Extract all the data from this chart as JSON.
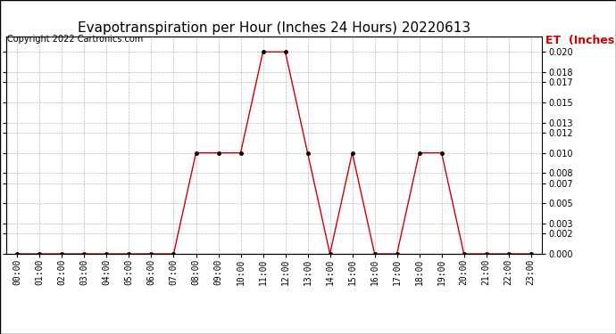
{
  "title": "Evapotranspiration per Hour (Inches 24 Hours) 20220613",
  "copyright_text": "Copyright 2022 Cartronics.com",
  "legend_label": "ET  (Inches)",
  "hours": [
    "00:00",
    "01:00",
    "02:00",
    "03:00",
    "04:00",
    "05:00",
    "06:00",
    "07:00",
    "08:00",
    "09:00",
    "10:00",
    "11:00",
    "12:00",
    "13:00",
    "14:00",
    "15:00",
    "16:00",
    "17:00",
    "18:00",
    "19:00",
    "20:00",
    "21:00",
    "22:00",
    "23:00"
  ],
  "values": [
    0.0,
    0.0,
    0.0,
    0.0,
    0.0,
    0.0,
    0.0,
    0.0,
    0.01,
    0.01,
    0.01,
    0.02,
    0.02,
    0.01,
    0.0,
    0.01,
    0.0,
    0.0,
    0.01,
    0.01,
    0.0,
    0.0,
    0.0,
    0.0
  ],
  "ylim": [
    0.0,
    0.0215
  ],
  "yticks": [
    0.0,
    0.002,
    0.003,
    0.005,
    0.007,
    0.008,
    0.01,
    0.012,
    0.013,
    0.015,
    0.017,
    0.018,
    0.02
  ],
  "line_color": "#cc0000",
  "marker_color": "#000000",
  "background_color": "#ffffff",
  "grid_color": "#bbbbbb",
  "title_fontsize": 11,
  "copyright_fontsize": 7,
  "legend_color": "#cc0000",
  "legend_fontsize": 9,
  "tick_fontsize": 7,
  "border_color": "#000000"
}
